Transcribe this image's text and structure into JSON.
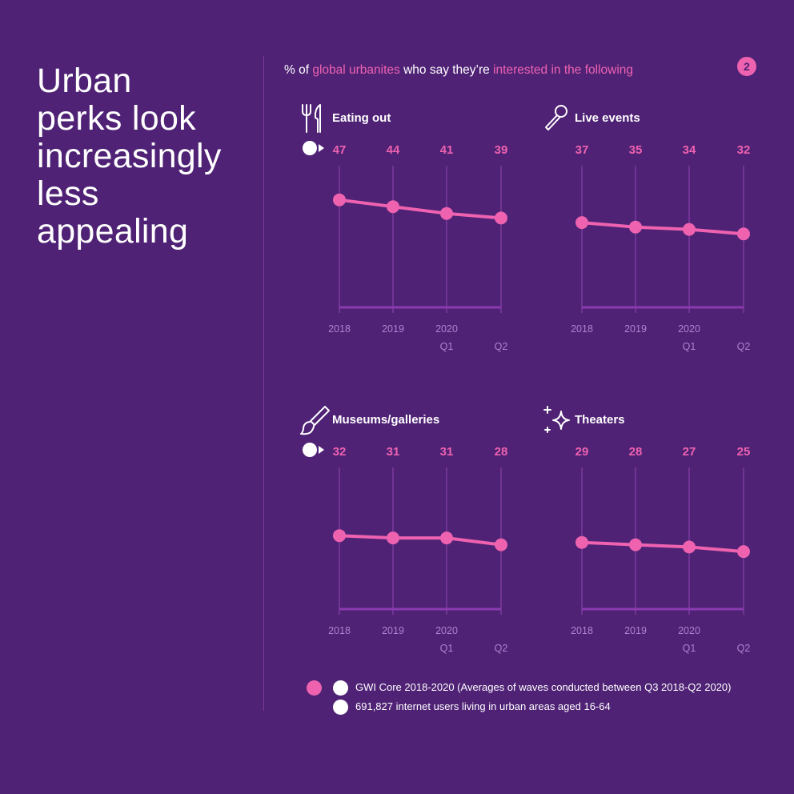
{
  "headline": [
    "Urban",
    "perks look",
    "increasingly",
    "less",
    "appealing"
  ],
  "subtitle": {
    "part1": "% of ",
    "highlight1": "global urbanites",
    "part2": " who say they’re ",
    "highlight2": "interested in the following"
  },
  "page_number": "2",
  "colors": {
    "background": "#4f2275",
    "accent": "#ee62b0",
    "grid": "#7b3a9d",
    "tick": "#b182cf"
  },
  "chart_data": [
    {
      "type": "line",
      "title": "Eating out",
      "icon": "cutlery-icon",
      "categories": [
        "2018",
        "2019",
        "2020 Q1",
        "2020 Q2"
      ],
      "x_ticks": [
        [
          "2018"
        ],
        [
          "2019"
        ],
        [
          "2020",
          "Q1"
        ],
        [
          "Q2"
        ]
      ],
      "values": [
        47,
        44,
        41,
        39
      ],
      "ylim": [
        0,
        55
      ]
    },
    {
      "type": "line",
      "title": "Live events",
      "icon": "microphone-icon",
      "categories": [
        "2018",
        "2019",
        "2020 Q1",
        "2020 Q2"
      ],
      "x_ticks": [
        [
          "2018"
        ],
        [
          "2019"
        ],
        [
          "2020",
          "Q1"
        ],
        [
          "Q2"
        ]
      ],
      "values": [
        37,
        35,
        34,
        32
      ],
      "ylim": [
        0,
        55
      ]
    },
    {
      "type": "line",
      "title": "Museums/galleries",
      "icon": "paintbrush-icon",
      "categories": [
        "2018",
        "2019",
        "2020 Q1",
        "2020 Q2"
      ],
      "x_ticks": [
        [
          "2018"
        ],
        [
          "2019"
        ],
        [
          "2020",
          "Q1"
        ],
        [
          "Q2"
        ]
      ],
      "values": [
        32,
        31,
        31,
        28
      ],
      "ylim": [
        0,
        55
      ]
    },
    {
      "type": "line",
      "title": "Theaters",
      "icon": "sparkle-icon",
      "categories": [
        "2018",
        "2019",
        "2020 Q1",
        "2020 Q2"
      ],
      "x_ticks": [
        [
          "2018"
        ],
        [
          "2019"
        ],
        [
          "2020",
          "Q1"
        ],
        [
          "Q2"
        ]
      ],
      "values": [
        29,
        28,
        27,
        25
      ],
      "ylim": [
        0,
        55
      ]
    }
  ],
  "footnote": {
    "source": "GWI Core 2018-2020 (Averages of waves conducted between Q3 2018-Q2 2020)",
    "base": "691,827 internet users living in urban areas aged 16-64"
  }
}
